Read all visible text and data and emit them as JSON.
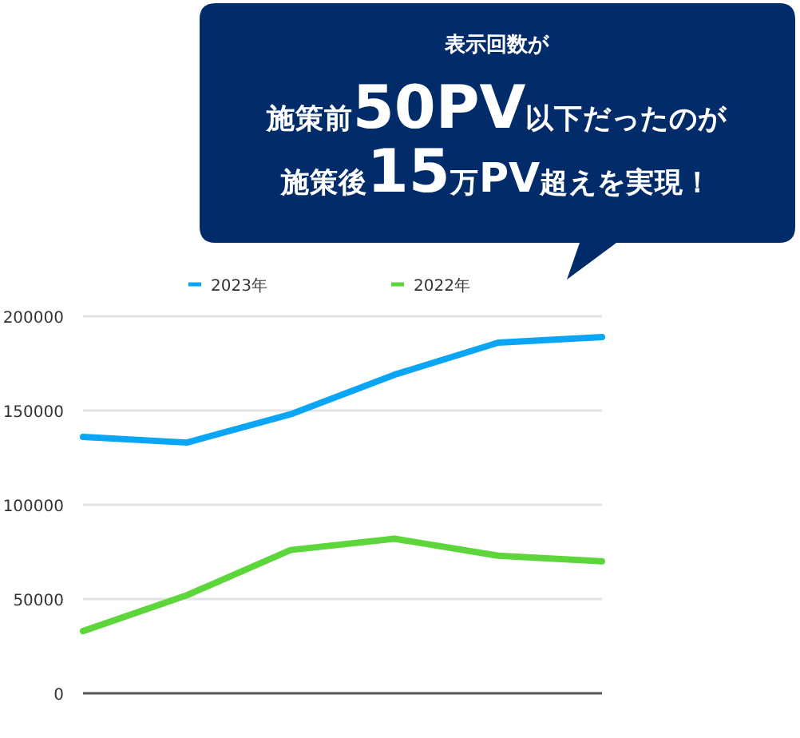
{
  "chart_data": {
    "type": "line",
    "categories": [
      null,
      null,
      null,
      null,
      null,
      null
    ],
    "series": [
      {
        "name": "2023年",
        "color": "#0aa5f5",
        "values": [
          136000,
          133000,
          148000,
          169000,
          186000,
          189000
        ]
      },
      {
        "name": "2022年",
        "color": "#5cd63a",
        "values": [
          33000,
          52000,
          76000,
          82000,
          73000,
          70000
        ]
      }
    ],
    "ylim": [
      0,
      200000
    ],
    "yticks": [
      0,
      50000,
      100000,
      150000,
      200000
    ],
    "grid": "y",
    "legend": "top",
    "marker": "none",
    "line_style": "solid",
    "annotations": [
      "表示回数が",
      "施策前50PV以下だったのが",
      "施策後15万PV超えを実現！"
    ]
  }
}
